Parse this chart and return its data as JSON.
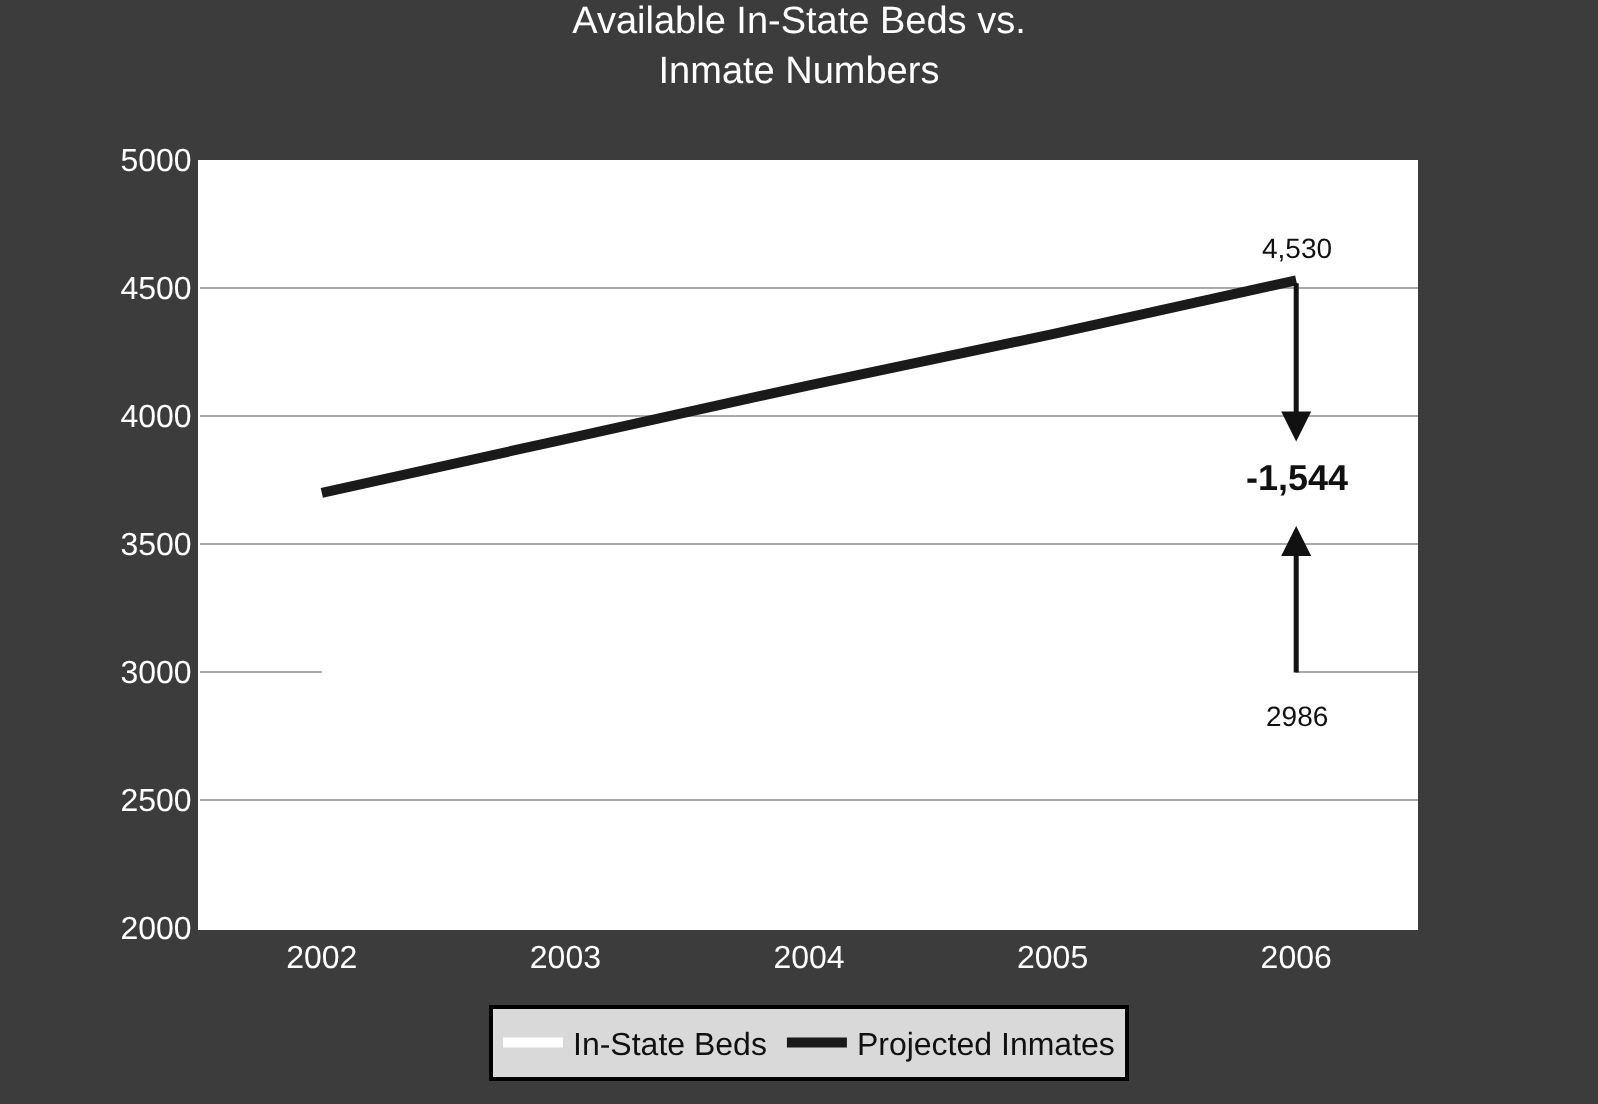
{
  "chart_data": {
    "type": "line",
    "title": "Available In-State Beds vs.\nInmate Numbers",
    "categories": [
      "2002",
      "2003",
      "2004",
      "2005",
      "2006"
    ],
    "series": [
      {
        "name": "In-State Beds",
        "color": "#ffffff",
        "values": [
          2986,
          2986,
          2986,
          2986,
          2986
        ]
      },
      {
        "name": "Projected Inmates",
        "color": "#1a1a1a",
        "values": [
          3700,
          3910,
          4120,
          4320,
          4530
        ]
      }
    ],
    "ylim": [
      2000,
      5000
    ],
    "yticks": [
      2000,
      2500,
      3000,
      3500,
      4000,
      4500,
      5000
    ],
    "grid": "y",
    "legend": "bottom",
    "marker": "none",
    "line_style": "solid",
    "annotations": [
      {
        "text": "4,530",
        "x": "2006",
        "y": 4530
      },
      "-1,544",
      {
        "text": "2986",
        "x": "2006",
        "y": 2986
      }
    ]
  }
}
